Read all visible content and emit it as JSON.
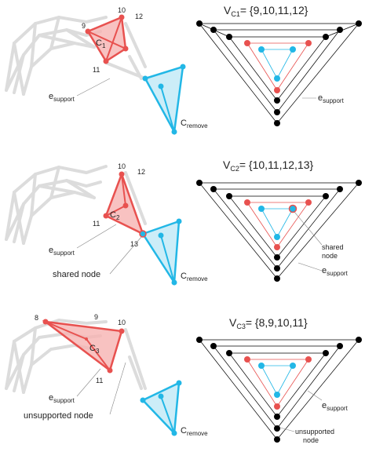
{
  "colors": {
    "red": "#e8514f",
    "red_fill": "#f6b3b2",
    "cyan": "#22b7e6",
    "cyan_fill": "#bfe8f6",
    "gray": "#d6d6d6",
    "black": "#000000"
  },
  "panels": [
    {
      "set_title": {
        "prefix": "V",
        "sub": "C1",
        "rest": "= {9,10,11,12}"
      },
      "node_labels": [
        "9",
        "10",
        "12",
        "11"
      ],
      "cluster": {
        "base": "C",
        "sub": "1"
      },
      "support_label": {
        "base": "e",
        "sub": "support"
      },
      "remove_label": {
        "base": "C",
        "sub": "remove"
      },
      "graph_right_label": {
        "base": "e",
        "sub": "support"
      }
    },
    {
      "set_title": {
        "prefix": "V",
        "sub": "C2",
        "rest": "= {10,11,12,13}"
      },
      "node_labels": [
        "10",
        "12",
        "11",
        "13"
      ],
      "cluster": {
        "base": "C",
        "sub": "2"
      },
      "support_label": {
        "base": "e",
        "sub": "support"
      },
      "shared_label": "shared node",
      "remove_label": {
        "base": "C",
        "sub": "remove"
      },
      "graph_shared_label": [
        "shared",
        "node"
      ],
      "graph_right_label": {
        "base": "e",
        "sub": "support"
      }
    },
    {
      "set_title": {
        "prefix": "V",
        "sub": "C3",
        "rest": "= {8,9,10,11}"
      },
      "node_labels": [
        "8",
        "9",
        "10",
        "11"
      ],
      "cluster": {
        "base": "C",
        "sub": "3"
      },
      "support_label": {
        "base": "e",
        "sub": "support"
      },
      "unsupported_label": "unsupported node",
      "remove_label": {
        "base": "C",
        "sub": "remove"
      },
      "graph_right_label": {
        "base": "e",
        "sub": "support"
      },
      "graph_unsupported_label": [
        "unsupported",
        "node"
      ]
    }
  ],
  "graph_nodes": {
    "black": [
      "2",
      "4",
      "7",
      "8",
      "5",
      "1",
      "3",
      "0",
      "6",
      "9",
      "12"
    ],
    "red": [
      "10",
      "11",
      "14",
      "12",
      "17"
    ],
    "cyan": [
      "15",
      "16",
      "13",
      "14",
      "18"
    ]
  }
}
